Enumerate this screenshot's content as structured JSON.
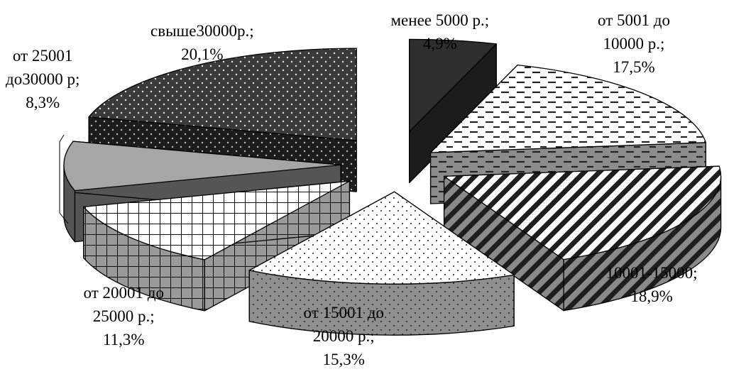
{
  "chart_data": {
    "type": "pie",
    "style": "3d-exploded",
    "start_slice": 0,
    "direction": "clockwise",
    "slices": [
      {
        "lines": [
          "менее 5000 р.;",
          "4,9%"
        ],
        "value": 4.9,
        "pattern": "solid-dark",
        "color": "#333333"
      },
      {
        "lines": [
          "от 5001 до",
          "10000  р.;",
          "17,5%"
        ],
        "value": 17.5,
        "pattern": "dashes",
        "color": "#cccccc"
      },
      {
        "lines": [
          "10001-15000;",
          "18,9%"
        ],
        "value": 18.9,
        "pattern": "diagonal-stripes",
        "color": "#555555"
      },
      {
        "lines": [
          "от 15001 до",
          "20000 р.;",
          "15,3%"
        ],
        "value": 15.3,
        "pattern": "dots-light",
        "color": "#999999"
      },
      {
        "lines": [
          "от 20001 до",
          "25000 р.;",
          "11,3%"
        ],
        "value": 11.3,
        "pattern": "grid",
        "color": "#aaaaaa"
      },
      {
        "lines": [
          "от 25001",
          "до30000 р;",
          "8,3%"
        ],
        "value": 8.3,
        "pattern": "solid-gray",
        "color": "#999999"
      },
      {
        "lines": [
          "свыше30000р.;",
          "20,1%"
        ],
        "value": 20.1,
        "pattern": "dots-dark",
        "color": "#333333"
      }
    ]
  }
}
